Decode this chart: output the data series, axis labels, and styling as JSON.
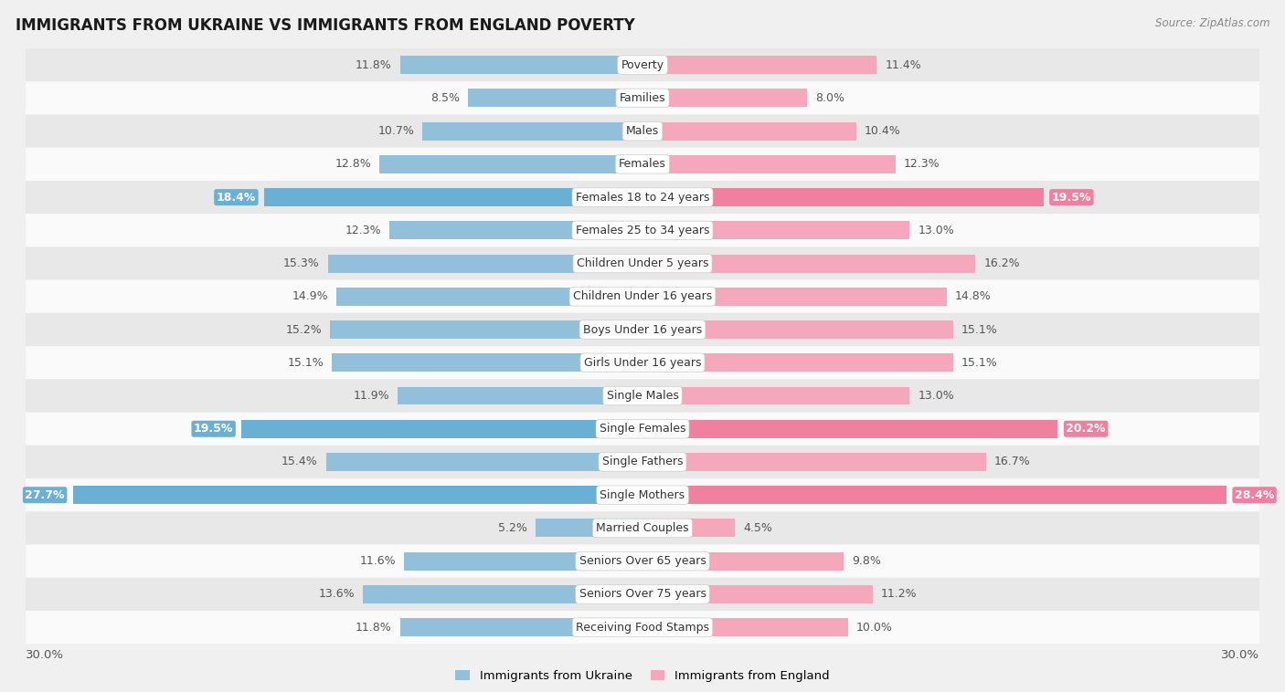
{
  "title": "IMMIGRANTS FROM UKRAINE VS IMMIGRANTS FROM ENGLAND POVERTY",
  "source": "Source: ZipAtlas.com",
  "categories": [
    "Poverty",
    "Families",
    "Males",
    "Females",
    "Females 18 to 24 years",
    "Females 25 to 34 years",
    "Children Under 5 years",
    "Children Under 16 years",
    "Boys Under 16 years",
    "Girls Under 16 years",
    "Single Males",
    "Single Females",
    "Single Fathers",
    "Single Mothers",
    "Married Couples",
    "Seniors Over 65 years",
    "Seniors Over 75 years",
    "Receiving Food Stamps"
  ],
  "ukraine_values": [
    11.8,
    8.5,
    10.7,
    12.8,
    18.4,
    12.3,
    15.3,
    14.9,
    15.2,
    15.1,
    11.9,
    19.5,
    15.4,
    27.7,
    5.2,
    11.6,
    13.6,
    11.8
  ],
  "england_values": [
    11.4,
    8.0,
    10.4,
    12.3,
    19.5,
    13.0,
    16.2,
    14.8,
    15.1,
    15.1,
    13.0,
    20.2,
    16.7,
    28.4,
    4.5,
    9.8,
    11.2,
    10.0
  ],
  "ukraine_color": "#92c0da",
  "england_color": "#f5a8bc",
  "ukraine_highlight_color": "#6aafd4",
  "england_highlight_color": "#f07fa0",
  "highlight_rows": [
    4,
    11,
    13
  ],
  "x_max": 30.0,
  "bar_height": 0.55,
  "bg_color": "#f0f0f0",
  "row_even_color": "#e8e8e8",
  "row_odd_color": "#fafafa",
  "label_color": "#555555",
  "label_fontsize": 9,
  "cat_fontsize": 9,
  "legend_ukraine": "Immigrants from Ukraine",
  "legend_england": "Immigrants from England",
  "x_tick_label": "30.0%"
}
